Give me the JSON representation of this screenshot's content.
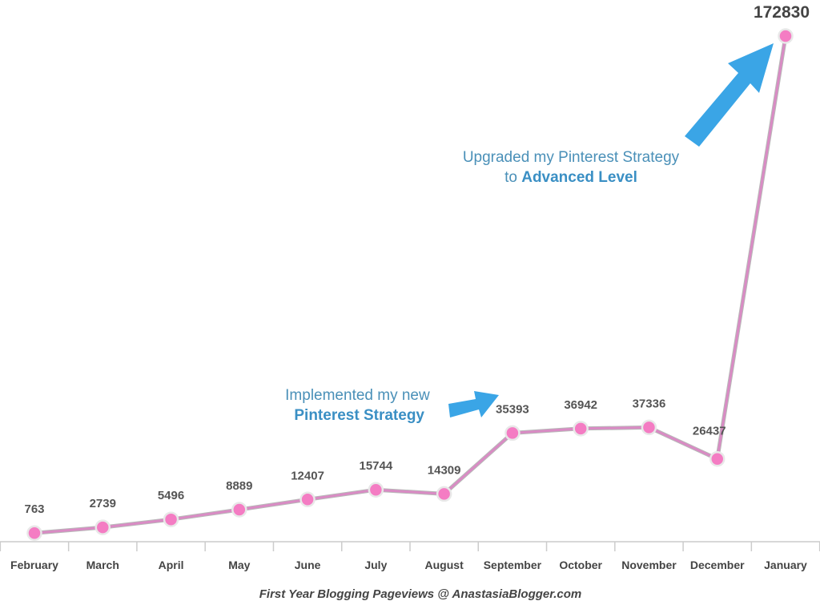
{
  "chart_data": {
    "type": "line",
    "categories": [
      "February",
      "March",
      "April",
      "May",
      "June",
      "July",
      "August",
      "September",
      "October",
      "November",
      "December",
      "January"
    ],
    "values": [
      763,
      2739,
      5496,
      8889,
      12407,
      15744,
      14309,
      35393,
      36942,
      37336,
      26437,
      172830
    ],
    "title": "",
    "caption": "First Year Blogging Pageviews @ AnastasiaBlogger.com",
    "xlabel": "",
    "ylabel": "",
    "ylim": [
      0,
      172830
    ],
    "grid": false,
    "legend": "none",
    "line_color": "#d98bc4",
    "point_color": "#f47cc3",
    "annotation_color": "#3aa5e6",
    "annotations": [
      {
        "line1": "Implemented my new",
        "line2_bold": "Pinterest Strategy",
        "line2_prefix": ""
      },
      {
        "line1": "Upgraded my Pinterest Strategy",
        "line2_prefix": "to ",
        "line2_bold": "Advanced Level"
      }
    ]
  }
}
